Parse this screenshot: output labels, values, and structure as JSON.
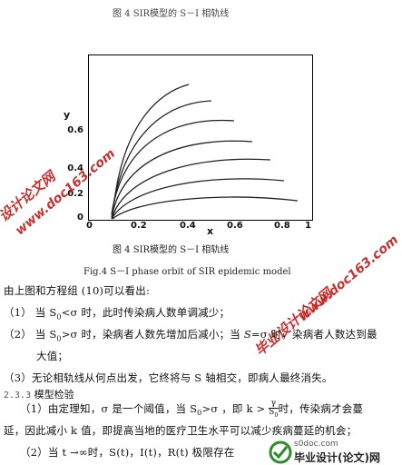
{
  "top_caption": "图 4  SIR模型的 S－I 相轨线",
  "figure": {
    "y_axis_name": "y",
    "x_axis_name": "x",
    "y_ticks": [
      "0.6",
      "0.4",
      "0.2",
      "0"
    ],
    "x_ticks": [
      "0",
      "0.2",
      "0.4",
      "0.6",
      "0.8",
      "1"
    ],
    "caption_cn": "图 4  SIR模型的 S－I 相轨线",
    "caption_en": "Fig.4  S－I  phase orbit of SIR epidemic model"
  },
  "watermarks": {
    "left_cn": "设计论文网",
    "left_url": "www.doc163.com",
    "right_cn": "毕业设计论文网",
    "right_url": "www.doc163.com"
  },
  "text": {
    "intro": "由上图和方程组 (10)可以看出:",
    "item1_prefix": "（1）  当 S",
    "item1_sub": "0",
    "item1_rest": "<σ 时，此时传染病人数单调减少；",
    "item2_prefix": "（2）  当 S",
    "item2_sub": "0",
    "item2_mid": ">σ 时，染病者人数先增加后减小；当",
    "item2_end": "=σ 时，染病者人数达到最",
    "item2_cont": "大值；",
    "item3": "（3）无论相轨线从何点出发，它终将与 S 轴相交，即病人最终消失。",
    "section_num": "2.3.3",
    "section_title": "模型检验",
    "p1_a": "（1）由定理知，σ 是一个阈值，当 S",
    "p1_sub": "0",
    "p1_b": ">σ ，即 k >",
    "p1_frac_num": "γ",
    "p1_frac_den": "S",
    "p1_frac_den_sub": "0",
    "p1_c": "时，传染病才会蔓",
    "p2": "延，因此减小 k 值，即提高当地的医疗卫生水平可以减少疾病蔓延的机会；",
    "p3_a": "（2）当 t →∞时，S(t)，I(t)，R(t) 极限存在",
    "logo_site": "s0doc.com",
    "logo_cn": "毕业设计(论文)网"
  },
  "colors": {
    "watermark": "#c42020",
    "logo_green": "#2e8b2e"
  }
}
